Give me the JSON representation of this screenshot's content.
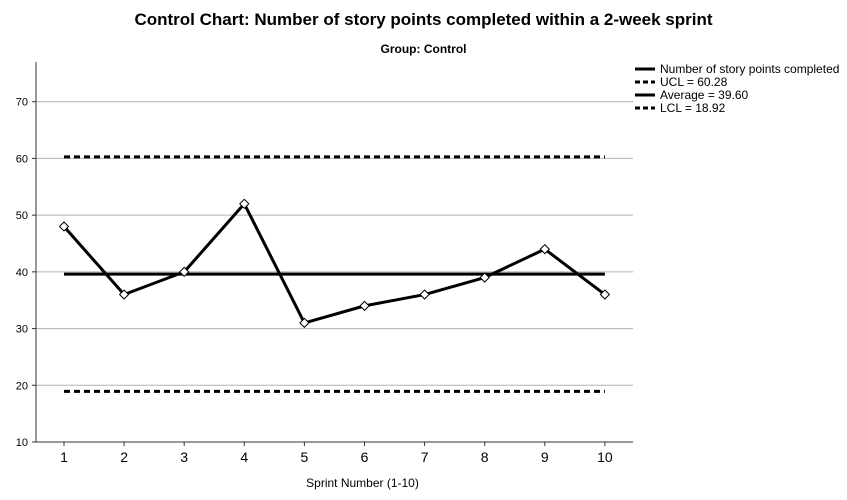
{
  "chart_data": {
    "type": "line",
    "title": "Control Chart: Number of story points completed within a 2-week sprint",
    "subtitle": "Group: Control",
    "xlabel": "Sprint Number (1-10)",
    "ylabel": "",
    "categories": [
      "1",
      "2",
      "3",
      "4",
      "5",
      "6",
      "7",
      "8",
      "9",
      "10"
    ],
    "ylim": [
      10,
      77
    ],
    "yticks": [
      10,
      20,
      30,
      40,
      50,
      60,
      70
    ],
    "grid": true,
    "legend_position": "right",
    "series": [
      {
        "name": "Number of story points completed",
        "values": [
          48,
          36,
          40,
          52,
          31,
          34,
          36,
          39,
          44,
          36
        ],
        "style": "solid",
        "markers": "diamond"
      }
    ],
    "reference_lines": [
      {
        "name": "UCL = 60.28",
        "value": 60.28,
        "style": "dashed"
      },
      {
        "name": "Average = 39.60",
        "value": 39.6,
        "style": "solid"
      },
      {
        "name": "LCL = 18.92",
        "value": 18.92,
        "style": "dashed"
      }
    ],
    "colors": {
      "line": "#000000",
      "grid": "#b0b0b0",
      "axis": "#333333"
    }
  }
}
